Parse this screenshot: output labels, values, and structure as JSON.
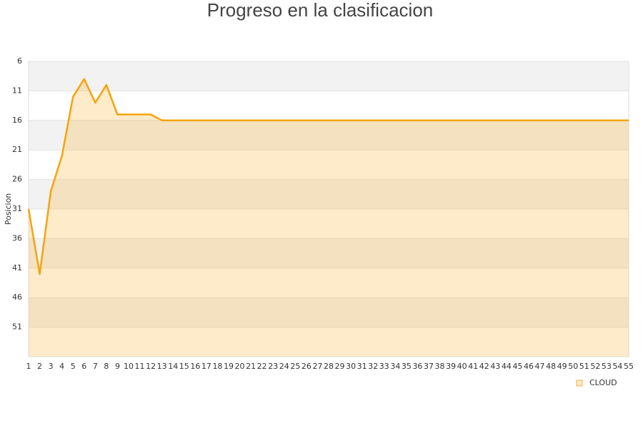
{
  "chart_data": {
    "type": "area",
    "title": "Progreso en la clasificacion",
    "y_label": "Posicion",
    "categories": [
      "1",
      "2",
      "3",
      "4",
      "5",
      "6",
      "7",
      "8",
      "9",
      "10",
      "11",
      "12",
      "13",
      "14",
      "15",
      "16",
      "17",
      "18",
      "19",
      "20",
      "21",
      "22",
      "23",
      "24",
      "25",
      "26",
      "27",
      "28",
      "29",
      "30",
      "31",
      "32",
      "33",
      "34",
      "35",
      "36",
      "37",
      "38",
      "39",
      "40",
      "41",
      "42",
      "43",
      "44",
      "45",
      "46",
      "47",
      "48",
      "49",
      "50",
      "51",
      "52",
      "53",
      "54",
      "55"
    ],
    "series": [
      {
        "name": "CLOUD",
        "color": "#f5a40c",
        "values": [
          31,
          42,
          28,
          22,
          12,
          9,
          13,
          10,
          15,
          15,
          15,
          15,
          16,
          16,
          16,
          16,
          16,
          16,
          16,
          16,
          16,
          16,
          16,
          16,
          16,
          16,
          16,
          16,
          16,
          16,
          16,
          16,
          16,
          16,
          16,
          16,
          16,
          16,
          16,
          16,
          16,
          16,
          16,
          16,
          16,
          16,
          16,
          16,
          16,
          16,
          16,
          16,
          16,
          16,
          16
        ]
      }
    ],
    "ylim": [
      6,
      56
    ],
    "yticks": [
      6,
      11,
      16,
      21,
      26,
      31,
      36,
      41,
      46,
      51
    ],
    "y_inverted": true,
    "grid": true,
    "legend": "bottom-right"
  }
}
